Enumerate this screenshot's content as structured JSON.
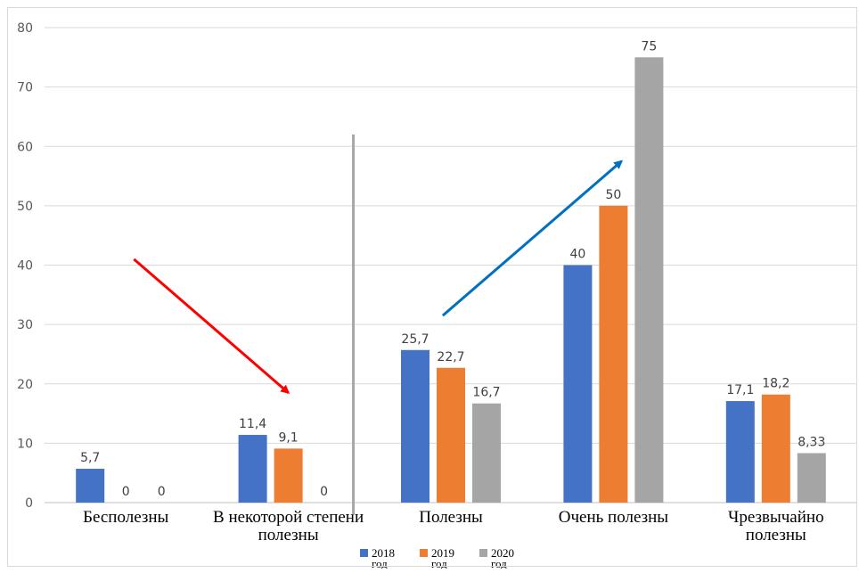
{
  "chart_data": {
    "type": "bar",
    "title": "",
    "xlabel": "",
    "ylabel": "",
    "ylim": [
      0,
      80
    ],
    "yticks": [
      0,
      10,
      20,
      30,
      40,
      50,
      60,
      70,
      80
    ],
    "grid": true,
    "legend_position": "bottom",
    "categories": [
      [
        "Бесполезны"
      ],
      [
        "В некоторой степени",
        "полезны"
      ],
      [
        "Полезны"
      ],
      [
        "Очень полезны"
      ],
      [
        "Чрезвычайно",
        "полезны"
      ]
    ],
    "series": [
      {
        "name": "2018 год",
        "color": "#4472c4",
        "values": [
          5.7,
          11.4,
          25.7,
          40,
          17.1
        ],
        "labels": [
          "5,7",
          "11,4",
          "25,7",
          "40",
          "17,1"
        ]
      },
      {
        "name": "2019 год",
        "color": "#ed7d31",
        "values": [
          0,
          9.1,
          22.7,
          50,
          18.2
        ],
        "labels": [
          "0",
          "9,1",
          "22,7",
          "50",
          "18,2"
        ]
      },
      {
        "name": "2020 год",
        "color": "#a5a5a5",
        "values": [
          0,
          0,
          16.7,
          75,
          8.33
        ],
        "labels": [
          "0",
          "0",
          "16,7",
          "75",
          "8,33"
        ]
      }
    ],
    "annotations": [
      {
        "type": "arrow",
        "color": "#ff0000",
        "direction": "down",
        "from": {
          "category_index": 0.55,
          "value": 41
        },
        "to": {
          "category_index": 1.5,
          "value": 18.5
        }
      },
      {
        "type": "arrow",
        "color": "#0070c0",
        "direction": "up",
        "from": {
          "category_index": 2.45,
          "value": 31.5
        },
        "to": {
          "category_index": 3.55,
          "value": 57.5
        }
      },
      {
        "type": "separator-line",
        "color": "#a6a6a6",
        "from": {
          "category_index": 1.9,
          "value": 62
        },
        "to": {
          "category_index": 1.9,
          "value": -2
        }
      }
    ]
  }
}
